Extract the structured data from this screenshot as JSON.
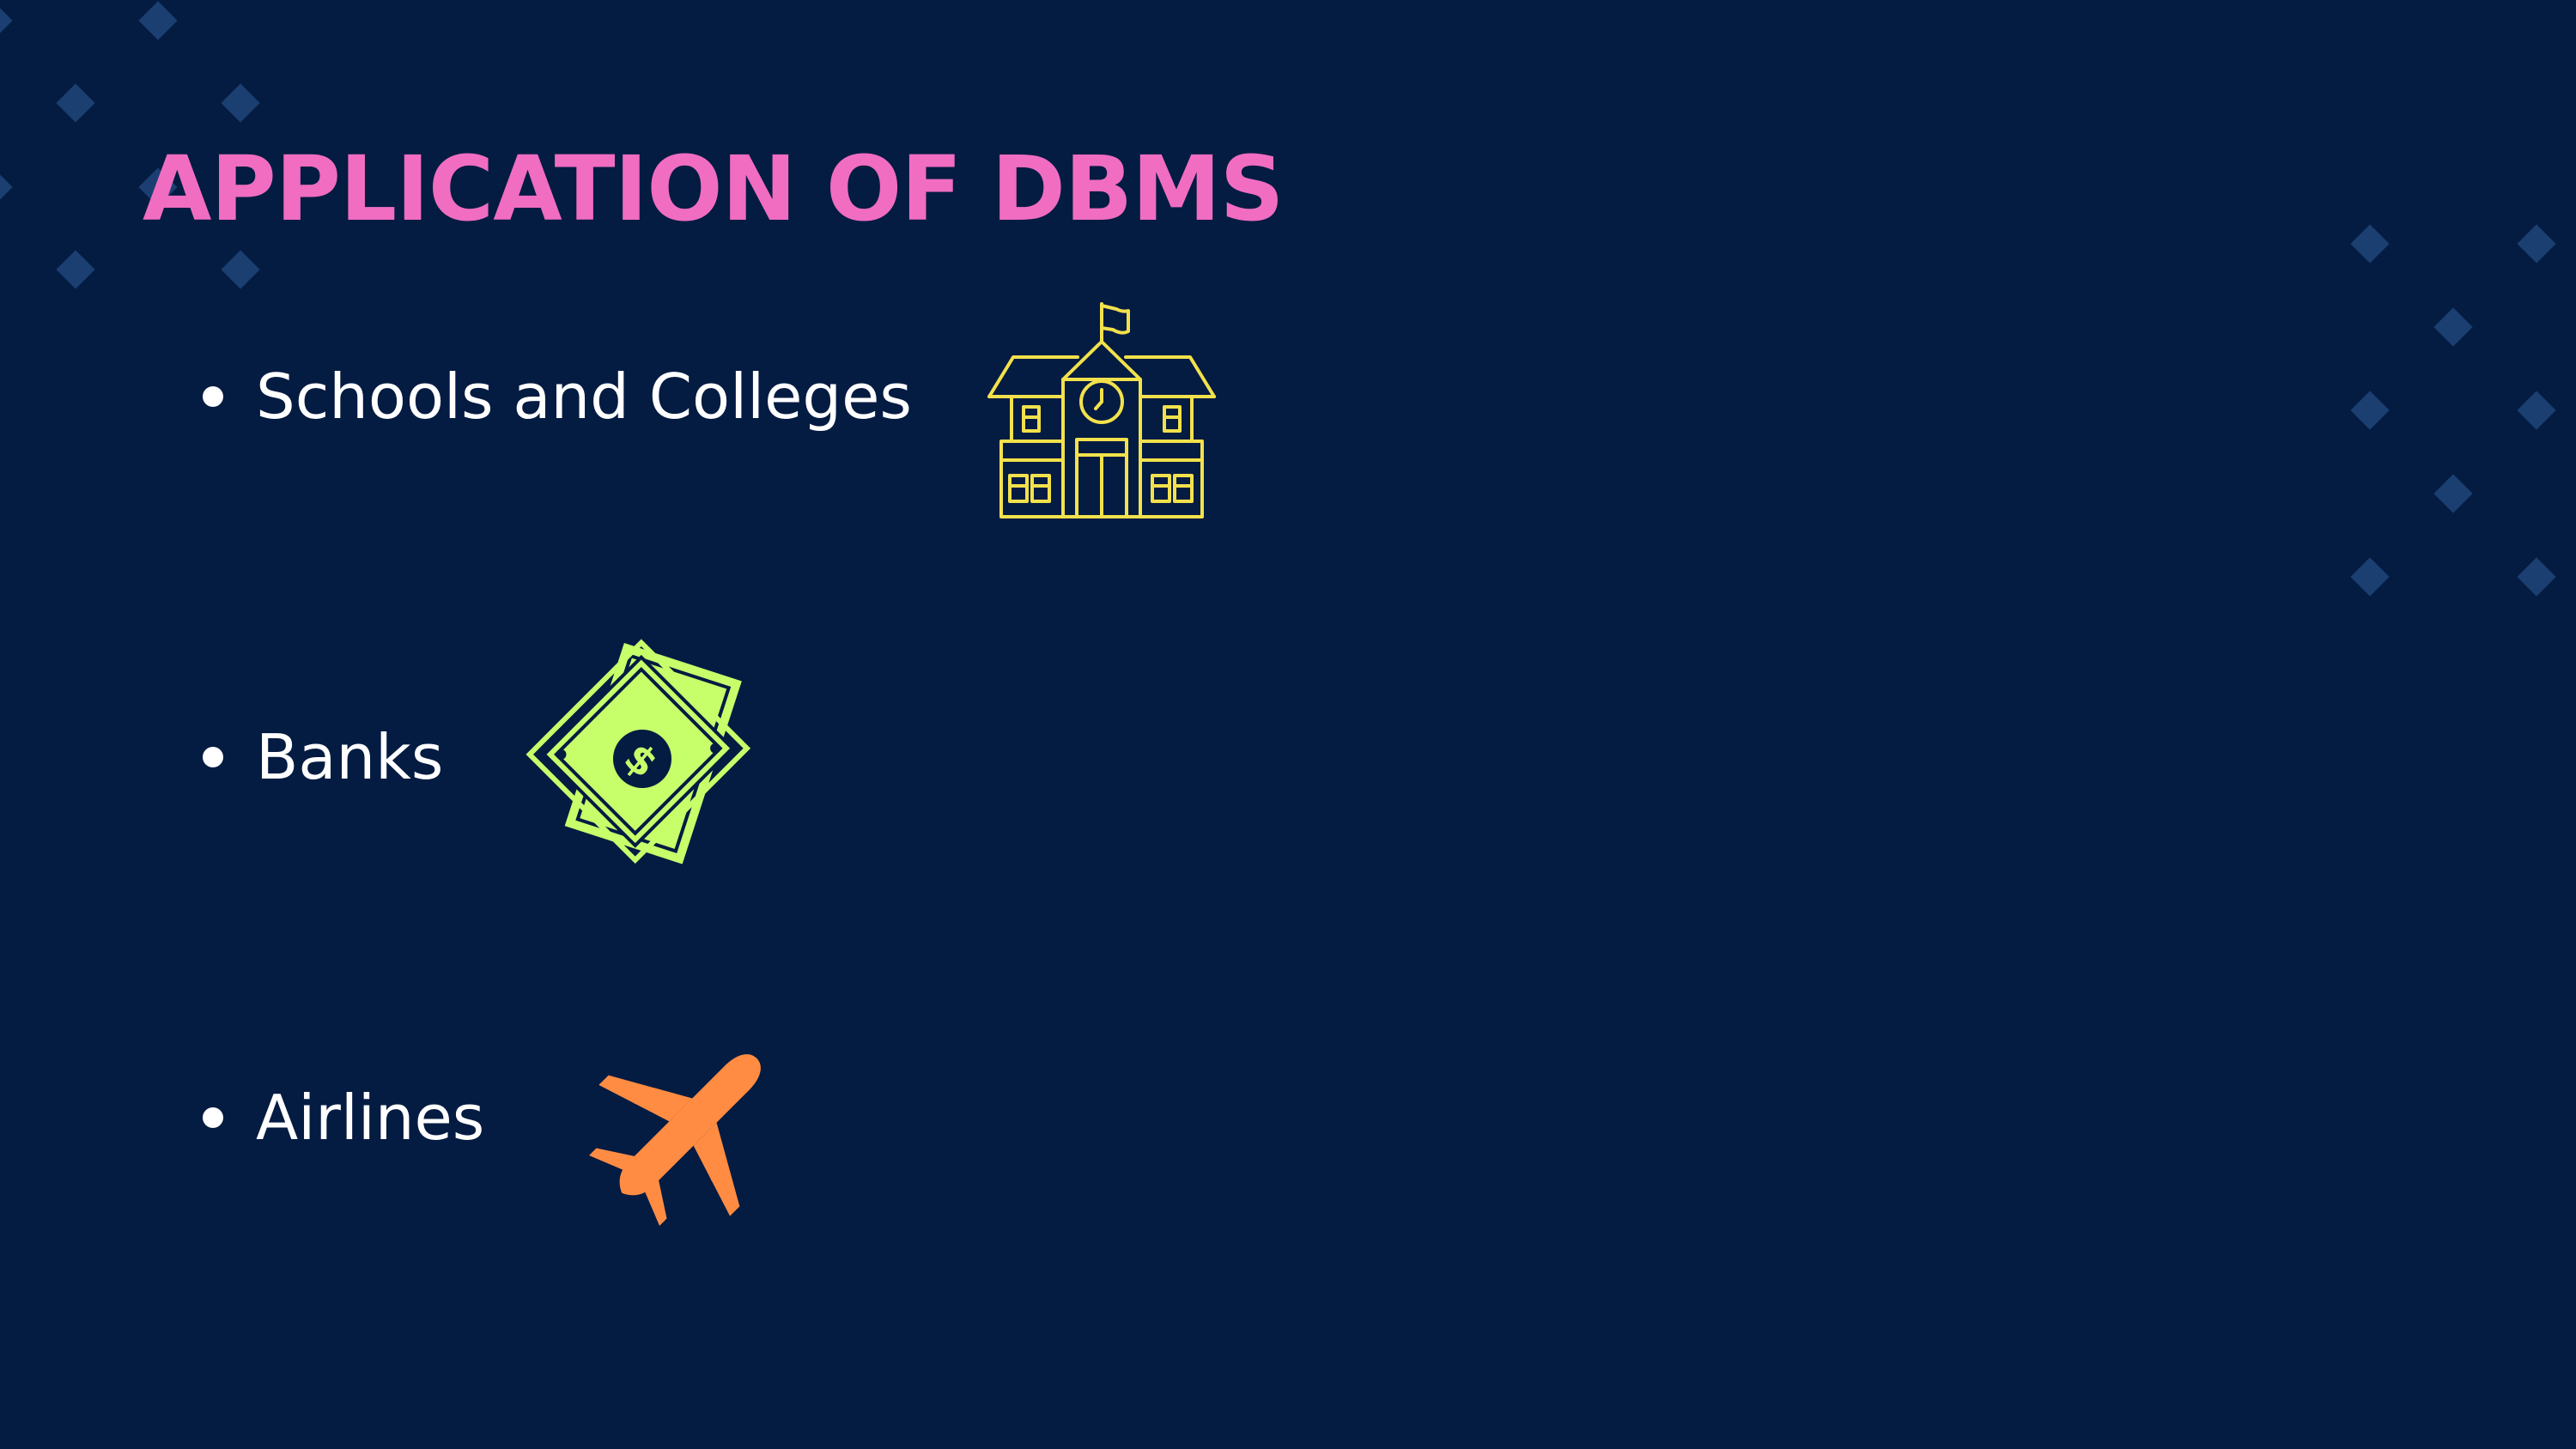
{
  "slide": {
    "title": "APPLICATION OF DBMS",
    "items": [
      {
        "label": "Schools and Colleges",
        "icon": "school-building-icon"
      },
      {
        "label": "Banks",
        "icon": "money-bills-icon"
      },
      {
        "label": "Airlines",
        "icon": "airplane-icon"
      }
    ]
  },
  "colors": {
    "background": "#041b42",
    "title": "#f06dc1",
    "text": "#ffffff",
    "decoration": "#1a3f70",
    "school_icon": "#f2e14c",
    "money_icon": "#c7ff6b",
    "airplane_icon": "#ff8c42"
  }
}
